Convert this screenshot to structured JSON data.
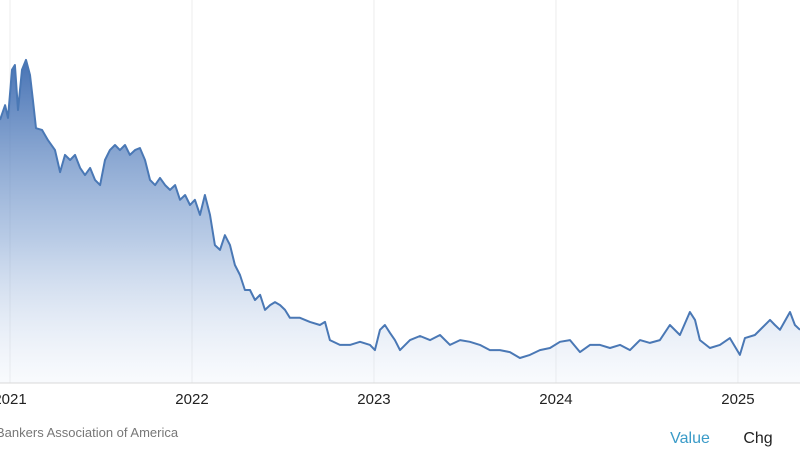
{
  "chart_data": {
    "type": "area",
    "x": [
      2020.945,
      2020.973,
      2020.989,
      2021.011,
      2021.027,
      2021.044,
      2021.066,
      2021.088,
      2021.11,
      2021.126,
      2021.143,
      2021.176,
      2021.209,
      2021.247,
      2021.275,
      2021.302,
      2021.33,
      2021.357,
      2021.385,
      2021.412,
      2021.44,
      2021.467,
      2021.495,
      2021.522,
      2021.549,
      2021.577,
      2021.604,
      2021.632,
      2021.659,
      2021.687,
      2021.714,
      2021.742,
      2021.769,
      2021.797,
      2021.824,
      2021.852,
      2021.879,
      2021.907,
      2021.934,
      2021.962,
      2021.989,
      2022.016,
      2022.044,
      2022.071,
      2022.099,
      2022.126,
      2022.154,
      2022.181,
      2022.209,
      2022.236,
      2022.264,
      2022.291,
      2022.319,
      2022.346,
      2022.374,
      2022.401,
      2022.429,
      2022.456,
      2022.484,
      2022.511,
      2022.538,
      2022.593,
      2022.648,
      2022.703,
      2022.731,
      2022.758,
      2022.813,
      2022.868,
      2022.923,
      2022.978,
      2023.005,
      2023.033,
      2023.06,
      2023.088,
      2023.115,
      2023.143,
      2023.198,
      2023.253,
      2023.308,
      2023.363,
      2023.418,
      2023.473,
      2023.527,
      2023.582,
      2023.637,
      2023.692,
      2023.747,
      2023.802,
      2023.857,
      2023.912,
      2023.967,
      2024.022,
      2024.077,
      2024.132,
      2024.187,
      2024.242,
      2024.297,
      2024.352,
      2024.407,
      2024.462,
      2024.516,
      2024.571,
      2024.626,
      2024.681,
      2024.736,
      2024.764,
      2024.791,
      2024.846,
      2024.901,
      2024.956,
      2025.011,
      2025.038,
      2025.093,
      2025.176,
      2025.203,
      2025.231,
      2025.286,
      2025.313,
      2025.341
    ],
    "values": [
      76.7,
      81.0,
      77.3,
      91.3,
      92.7,
      79.6,
      91.3,
      94.2,
      89.8,
      82.5,
      74.3,
      73.8,
      70.8,
      67.9,
      61.5,
      66.5,
      65.0,
      66.5,
      62.7,
      60.6,
      62.7,
      59.2,
      57.7,
      65.0,
      67.9,
      69.4,
      67.9,
      69.4,
      66.5,
      67.9,
      68.5,
      65.0,
      59.2,
      57.7,
      59.8,
      57.7,
      56.3,
      57.7,
      53.4,
      54.8,
      51.9,
      53.4,
      49.0,
      54.8,
      49.0,
      40.2,
      38.8,
      43.1,
      40.2,
      34.4,
      31.5,
      27.1,
      27.1,
      24.2,
      25.7,
      21.3,
      22.7,
      23.6,
      22.7,
      21.3,
      19.0,
      19.0,
      17.8,
      16.9,
      17.8,
      12.5,
      11.1,
      11.1,
      12.0,
      11.1,
      9.6,
      15.5,
      16.9,
      14.6,
      12.5,
      9.6,
      12.5,
      13.7,
      12.5,
      14.0,
      11.1,
      12.5,
      12.0,
      11.1,
      9.6,
      9.6,
      9.0,
      7.3,
      8.2,
      9.6,
      10.2,
      12.0,
      12.5,
      9.0,
      11.1,
      11.1,
      10.2,
      11.1,
      9.6,
      12.5,
      11.7,
      12.5,
      16.9,
      14.0,
      20.7,
      18.4,
      12.5,
      10.2,
      11.1,
      13.1,
      8.2,
      13.1,
      14.0,
      18.4,
      16.9,
      15.5,
      20.7,
      16.9,
      15.5
    ],
    "color": "#4a78b5",
    "xlim": [
      2020.945,
      2025.341
    ],
    "xticks": [
      2021,
      2022,
      2023,
      2024,
      2025
    ],
    "ylim": [
      0,
      100
    ],
    "grid": true,
    "source": "Bankers Association of America"
  },
  "controls": [
    "Value",
    "Chg"
  ]
}
